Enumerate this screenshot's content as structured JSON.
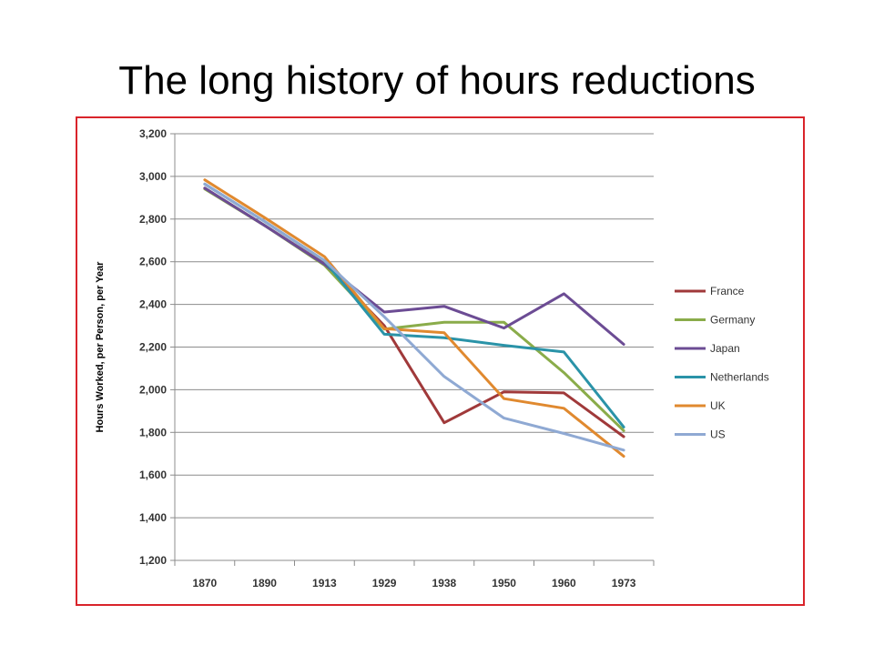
{
  "page": {
    "title": "The long history of hours reductions"
  },
  "chart_data": {
    "type": "line",
    "title": "The long history of hours reductions",
    "xlabel": "",
    "ylabel": "Hours Worked, per Person, per Year",
    "categories": [
      "1870",
      "1890",
      "1913",
      "1929",
      "1938",
      "1950",
      "1960",
      "1973"
    ],
    "yticks": [
      "1,200",
      "1,400",
      "1,600",
      "1,800",
      "2,000",
      "2,200",
      "2,400",
      "2,600",
      "2,800",
      "3,000",
      "3,200"
    ],
    "ylim": [
      1200,
      3200
    ],
    "grid": true,
    "legend_position": "right",
    "series": [
      {
        "name": "France",
        "color": "#a0393a",
        "values": [
          2945,
          2770,
          2590,
          2300,
          1845,
          1990,
          1985,
          1780
        ]
      },
      {
        "name": "Germany",
        "color": "#8aac4a",
        "values": [
          2941,
          2770,
          2584,
          2284,
          2316,
          2316,
          2080,
          1808
        ]
      },
      {
        "name": "Japan",
        "color": "#6c4c94",
        "values": [
          2945,
          2770,
          2588,
          2364,
          2391,
          2289,
          2450,
          2213
        ]
      },
      {
        "name": "Netherlands",
        "color": "#2a93a8",
        "values": [
          2964,
          2789,
          2605,
          2260,
          2244,
          2208,
          2177,
          1825
        ]
      },
      {
        "name": "UK",
        "color": "#e0892f",
        "values": [
          2984,
          2807,
          2624,
          2286,
          2267,
          1958,
          1913,
          1688
        ]
      },
      {
        "name": "US",
        "color": "#8fa9d3",
        "values": [
          2964,
          2789,
          2605,
          2342,
          2062,
          1867,
          1795,
          1717
        ]
      }
    ]
  }
}
